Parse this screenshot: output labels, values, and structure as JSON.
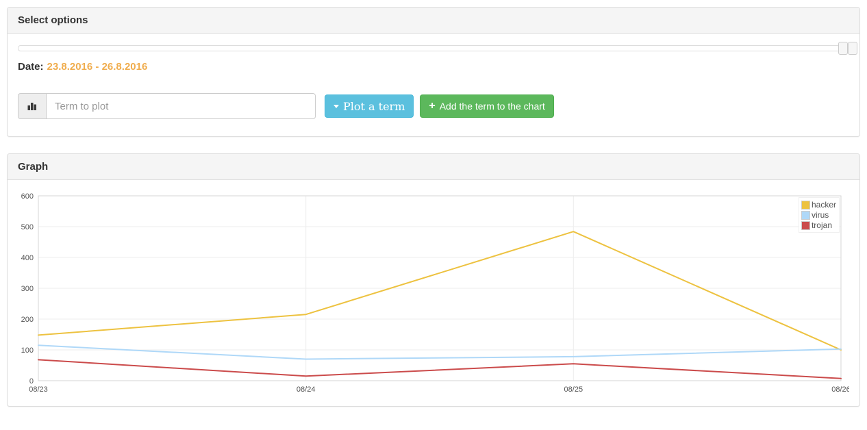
{
  "select_options_panel": {
    "title": "Select options",
    "date": {
      "label": "Date:",
      "range": "23.8.2016 - 26.8.2016"
    },
    "term_input": {
      "placeholder": "Term to plot",
      "value": ""
    },
    "plot_term_button_label": "Plot a term",
    "add_term_button_label": "Add the term to the chart"
  },
  "graph_panel": {
    "title": "Graph"
  },
  "icons": {
    "plus": "+",
    "caret_down": "caret-down",
    "bar_chart": "bar-chart"
  },
  "colors": {
    "date_range_text": "#f0ad4e",
    "plot_button_bg": "#5bc0de",
    "add_button_bg": "#5cb85c",
    "panel_heading_bg": "#f5f5f5",
    "grid_line": "#ededed",
    "axis_text": "#545454"
  },
  "chart_data": {
    "type": "line",
    "title": "",
    "xlabel": "",
    "ylabel": "",
    "x": [
      "08/23",
      "08/24",
      "08/25",
      "08/26"
    ],
    "series": [
      {
        "name": "hacker",
        "color": "#edc240",
        "values": [
          148,
          215,
          484,
          100
        ]
      },
      {
        "name": "virus",
        "color": "#afd8f8",
        "values": [
          115,
          70,
          78,
          103
        ]
      },
      {
        "name": "trojan",
        "color": "#cb4b4b",
        "values": [
          68,
          15,
          55,
          7
        ]
      }
    ],
    "ylim": [
      0,
      600
    ],
    "yticks": [
      0,
      100,
      200,
      300,
      400,
      500,
      600
    ],
    "grid": true,
    "legend_position": "top-right"
  }
}
